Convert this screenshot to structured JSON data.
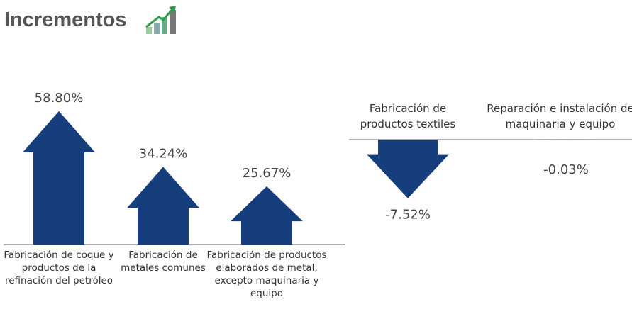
{
  "chart_data": {
    "type": "arrow",
    "title": "Incrementos",
    "categories": [
      "Fabricación de coque y productos de la refinación del petróleo",
      "Fabricación de metales comunes",
      "Fabricación de productos elaborados de metal, excepto maquinaria y equipo",
      "Fabricación de productos textiles",
      "Reparación e instalación de maquinaria y equipo"
    ],
    "values": [
      58.8,
      34.24,
      25.67,
      -7.52,
      -0.03
    ],
    "value_labels": [
      "58.80%",
      "34.24%",
      "25.67%",
      "-7.52%",
      "-0.03%"
    ],
    "color": "#163e7d"
  }
}
